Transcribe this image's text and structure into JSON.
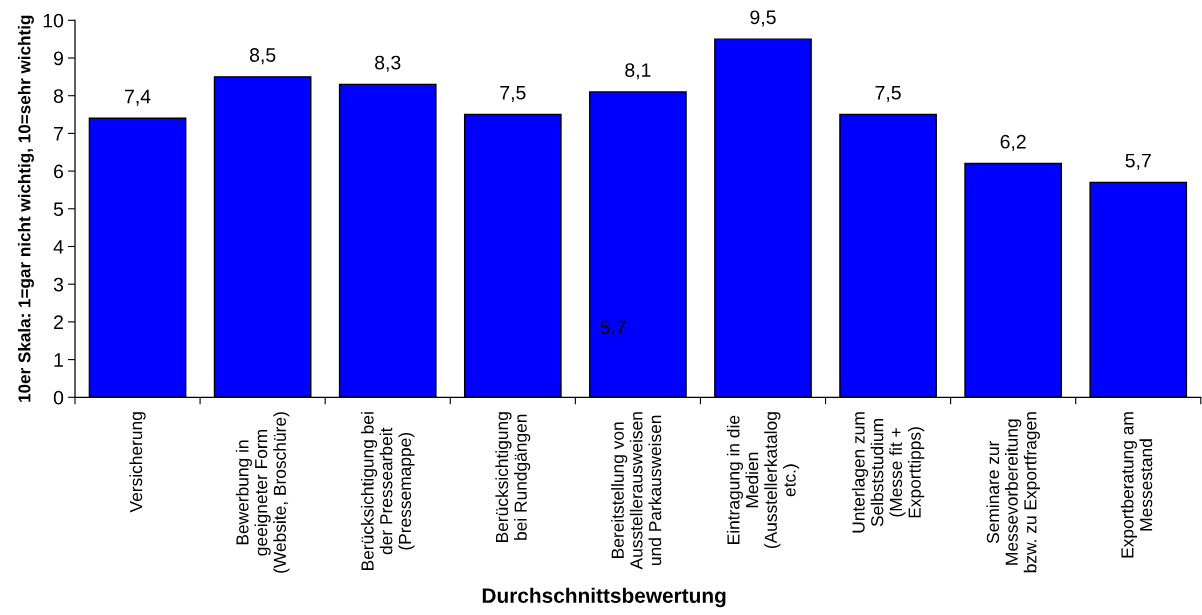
{
  "chart_data": {
    "type": "bar",
    "xlabel": "Durchschnittsbewertung",
    "ylabel": "10er Skala: 1=gar nicht wichtig, 10=sehr wichtig",
    "categories": [
      "Versicherung",
      "Bewerbung in\ngeeigneter Form\n(Website, Broschüre)",
      "Berücksichtigung bei\nder Pressearbeit\n(Pressemappe)",
      "Berücksichtigung\nbei Rundgängen",
      "Bereitstellung von\nAusstellerausweisen\nund Parkausweisen",
      "Eintragung in die\nMedien\n(Ausstellerkatalog\netc.)",
      "Unterlagen zum\nSelbststudium\n(Messe fit +\nExporttipps)",
      "Seminare zur\nMessevorbereitung\nbzw. zu Exportfragen",
      "Exportberatung am\nMessestand"
    ],
    "values": [
      7.4,
      8.5,
      8.3,
      7.5,
      8.1,
      9.5,
      7.5,
      6.2,
      5.7
    ],
    "value_labels": [
      "7,4",
      "8,5",
      "8,3",
      "7,5",
      "8,1",
      "9,5",
      "7,5",
      "6,2",
      "5,7"
    ],
    "color": "#0000ff",
    "ylim": [
      0,
      10
    ],
    "yticks": [
      0,
      1,
      2,
      3,
      4,
      5,
      6,
      7,
      8,
      9,
      10
    ],
    "annotations": [
      "5,7"
    ]
  }
}
